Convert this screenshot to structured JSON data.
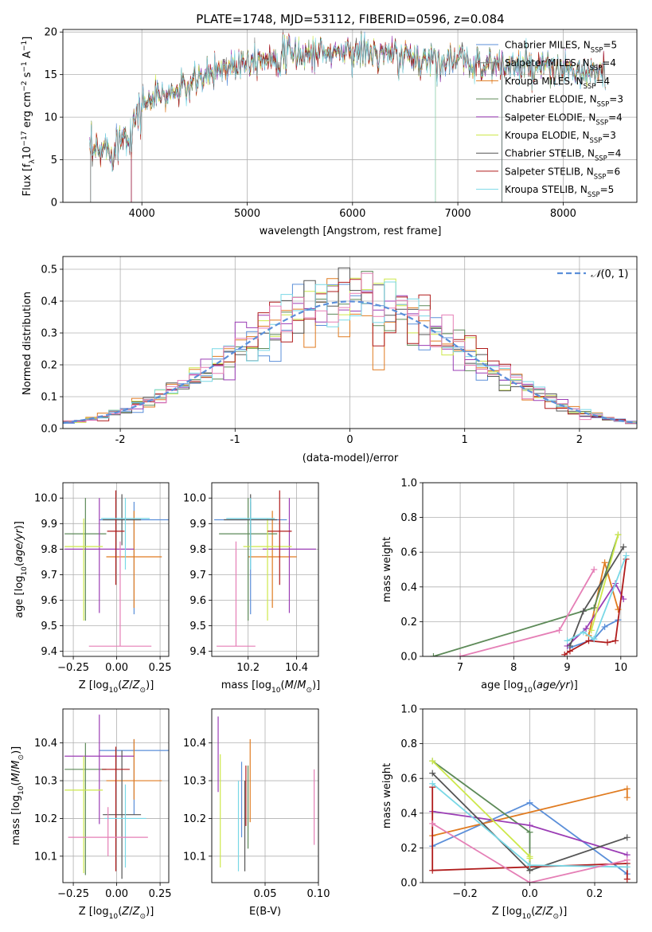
{
  "chart_data": [
    {
      "type": "line",
      "title": "PLATE=1748, MJD=53112, FIBERID=0596, z=0.084",
      "xlabel": "wavelength [Angstrom, rest frame]",
      "ylabel": "Flux [f_λ10^-17 erg cm^-2 s^-1 A^-1]",
      "xlim": [
        3250,
        8700
      ],
      "ylim": [
        0,
        20.3
      ],
      "xticks": [
        4000,
        5000,
        6000,
        7000,
        8000
      ],
      "yticks": [
        0,
        5,
        10,
        15,
        20
      ],
      "legend": "top-right",
      "series": [
        {
          "name": "Chabrier MILES, N_SSP=5",
          "color": "#5b8fd9"
        },
        {
          "name": "Salpeter MILES, N_SSP=4",
          "color": "#7f7f7f"
        },
        {
          "name": "Kroupa MILES, N_SSP=4",
          "color": "#e07b20"
        },
        {
          "name": "Chabrier ELODIE, N_SSP=3",
          "color": "#5d8a58"
        },
        {
          "name": "Salpeter ELODIE, N_SSP=4",
          "color": "#9b3db5"
        },
        {
          "name": "Kroupa ELODIE, N_SSP=3",
          "color": "#cde84b"
        },
        {
          "name": "Chabrier STELIB, N_SSP=4",
          "color": "#555555"
        },
        {
          "name": "Salpeter STELIB, N_SSP=6",
          "color": "#b01c1c"
        },
        {
          "name": "Kroupa STELIB, N_SSP=5",
          "color": "#79d8e6"
        }
      ],
      "spectrum_knots": {
        "x": [
          3500,
          3700,
          3900,
          4000,
          4100,
          4300,
          4500,
          4700,
          5000,
          5200,
          5500,
          6000,
          6500,
          7000,
          7500,
          8000,
          8500
        ],
        "y": [
          5.5,
          6.5,
          8.5,
          11.5,
          12.2,
          12.8,
          14.0,
          15.5,
          16.8,
          17.1,
          17.4,
          17.8,
          17.0,
          16.6,
          16.0,
          15.4,
          14.8
        ]
      },
      "dropouts_x": [
        3510,
        3900,
        6790,
        7420
      ]
    },
    {
      "type": "bar",
      "xlabel": "(data-model)/error",
      "ylabel": "Normed distribution",
      "xlim": [
        -2.5,
        2.5
      ],
      "ylim": [
        0,
        0.54
      ],
      "xticks": [
        -2,
        -1,
        0,
        1,
        2
      ],
      "yticks": [
        0.0,
        0.1,
        0.2,
        0.3,
        0.4,
        0.5
      ],
      "legend": "top-right",
      "gaussian_label": "N(0,1)",
      "bin_width": 0.1,
      "bin_start": -2.5,
      "series_colors": [
        "#5b8fd9",
        "#e07b20",
        "#5d8a58",
        "#9b3db5",
        "#cde84b",
        "#555555",
        "#b01c1c",
        "#79d8e6",
        "#e57fb6"
      ]
    },
    {
      "type": "scatter",
      "xlabel": "Z [log10(Z/Z⊙)]",
      "ylabel": "age [log10(age/yr)]",
      "xlim": [
        -0.31,
        0.3
      ],
      "ylim": [
        9.38,
        10.06
      ],
      "xticks": [
        -0.25,
        0.0,
        0.25
      ],
      "xticklabels": [
        "−0.25",
        "0.00",
        "0.25"
      ],
      "yticks": [
        9.4,
        9.5,
        9.6,
        9.7,
        9.8,
        9.9,
        10.0
      ],
      "points": [
        {
          "color": "#5b8fd9",
          "x": 0.1,
          "xerr": 0.2,
          "y": 9.915,
          "yerr": [
            0.37,
            0.07
          ]
        },
        {
          "color": "#e07b20",
          "x": 0.1,
          "xerr": 0.16,
          "y": 9.77,
          "yerr": [
            0.2,
            0.18
          ]
        },
        {
          "color": "#5d8a58",
          "x": -0.18,
          "xerr": 0.12,
          "y": 9.86,
          "yerr": [
            0.34,
            0.14
          ]
        },
        {
          "color": "#9b3db5",
          "x": -0.1,
          "xerr": 0.2,
          "y": 9.8,
          "yerr": [
            0.25,
            0.2
          ]
        },
        {
          "color": "#cde84b",
          "x": -0.19,
          "xerr": 0.11,
          "y": 9.81,
          "yerr": [
            0.29,
            0.11
          ]
        },
        {
          "color": "#555555",
          "x": 0.03,
          "xerr": 0.11,
          "y": 9.915,
          "yerr": [
            0.1,
            0.1
          ]
        },
        {
          "color": "#b01c1c",
          "x": -0.005,
          "xerr": 0.05,
          "y": 9.87,
          "yerr": [
            0.21,
            0.16
          ]
        },
        {
          "color": "#79d8e6",
          "x": 0.05,
          "xerr": 0.14,
          "y": 9.92,
          "yerr": [
            0.2,
            0.08
          ]
        },
        {
          "color": "#e57fb6",
          "x": 0.02,
          "xerr": 0.18,
          "y": 9.42,
          "yerr": [
            0.0,
            0.41
          ]
        }
      ]
    },
    {
      "type": "scatter",
      "xlabel": "mass [log10(M/M⊙)]",
      "ylabel": "",
      "xlim": [
        10.05,
        10.49
      ],
      "ylim": [
        9.38,
        10.06
      ],
      "xticks": [
        10.2,
        10.4
      ],
      "yticks": [
        9.4,
        9.5,
        9.6,
        9.7,
        9.8,
        9.9,
        10.0
      ],
      "points": [
        {
          "color": "#5b8fd9",
          "x": 10.21,
          "xerr": 0.15,
          "y": 9.915,
          "yerr": [
            0.37,
            0.07
          ]
        },
        {
          "color": "#e07b20",
          "x": 10.3,
          "xerr": 0.1,
          "y": 9.77,
          "yerr": [
            0.2,
            0.18
          ]
        },
        {
          "color": "#5d8a58",
          "x": 10.2,
          "xerr": 0.12,
          "y": 9.86,
          "yerr": [
            0.34,
            0.14
          ]
        },
        {
          "color": "#9b3db5",
          "x": 10.37,
          "xerr": 0.11,
          "y": 9.8,
          "yerr": [
            0.25,
            0.2
          ]
        },
        {
          "color": "#cde84b",
          "x": 10.28,
          "xerr": 0.1,
          "y": 9.81,
          "yerr": [
            0.29,
            0.11
          ]
        },
        {
          "color": "#555555",
          "x": 10.21,
          "xerr": 0.11,
          "y": 9.915,
          "yerr": [
            0.1,
            0.1
          ]
        },
        {
          "color": "#b01c1c",
          "x": 10.33,
          "xerr": 0.05,
          "y": 9.87,
          "yerr": [
            0.21,
            0.16
          ]
        },
        {
          "color": "#79d8e6",
          "x": 10.21,
          "xerr": 0.1,
          "y": 9.92,
          "yerr": [
            0.2,
            0.08
          ]
        },
        {
          "color": "#e57fb6",
          "x": 10.15,
          "xerr": 0.08,
          "y": 9.42,
          "yerr": [
            0.0,
            0.41
          ]
        }
      ]
    },
    {
      "type": "line",
      "xlabel": "age [log10(age/yr)]",
      "ylabel": "mass weight",
      "xlim": [
        6.3,
        10.3
      ],
      "ylim": [
        0,
        1
      ],
      "xticks": [
        7,
        8,
        9,
        10
      ],
      "yticks": [
        0.0,
        0.2,
        0.4,
        0.6,
        0.8,
        1.0
      ],
      "series": [
        {
          "color": "#5b8fd9",
          "x": [
            9.05,
            9.5,
            9.7,
            9.95
          ],
          "y": [
            0.05,
            0.1,
            0.17,
            0.21
          ]
        },
        {
          "color": "#e07b20",
          "x": [
            9.4,
            9.7,
            9.95
          ],
          "y": [
            0.12,
            0.54,
            0.27
          ]
        },
        {
          "color": "#5d8a58",
          "x": [
            6.5,
            9.5,
            9.95
          ],
          "y": [
            0.0,
            0.28,
            0.7
          ]
        },
        {
          "color": "#9b3db5",
          "x": [
            9.0,
            9.35,
            9.9,
            10.05
          ],
          "y": [
            0.06,
            0.16,
            0.42,
            0.33
          ]
        },
        {
          "color": "#cde84b",
          "x": [
            9.45,
            9.95
          ],
          "y": [
            0.15,
            0.7
          ]
        },
        {
          "color": "#555555",
          "x": [
            9.05,
            9.3,
            10.05
          ],
          "y": [
            0.06,
            0.26,
            0.63
          ]
        },
        {
          "color": "#b01c1c",
          "x": [
            8.95,
            9.05,
            9.4,
            9.75,
            9.9,
            10.1
          ],
          "y": [
            0.01,
            0.03,
            0.09,
            0.08,
            0.09,
            0.56
          ]
        },
        {
          "color": "#79d8e6",
          "x": [
            9.0,
            9.3,
            9.5,
            10.1
          ],
          "y": [
            0.09,
            0.14,
            0.1,
            0.58
          ]
        },
        {
          "color": "#e57fb6",
          "x": [
            7.0,
            8.85,
            9.5
          ],
          "y": [
            0.0,
            0.15,
            0.5
          ]
        }
      ]
    },
    {
      "type": "scatter",
      "xlabel": "Z [log10(Z/Z⊙)]",
      "ylabel": "mass [log10(M/M⊙)]",
      "xlim": [
        -0.31,
        0.3
      ],
      "ylim": [
        10.03,
        10.49
      ],
      "xticks": [
        -0.25,
        0.0,
        0.25
      ],
      "xticklabels": [
        "−0.25",
        "0.00",
        "0.25"
      ],
      "yticks": [
        10.1,
        10.2,
        10.3,
        10.4
      ],
      "points": [
        {
          "color": "#5b8fd9",
          "x": 0.1,
          "xerr": 0.2,
          "y": 10.38,
          "yerr": [
            0.17,
            0.03
          ]
        },
        {
          "color": "#e07b20",
          "x": 0.1,
          "xerr": 0.16,
          "y": 10.3,
          "yerr": [
            0.05,
            0.11
          ]
        },
        {
          "color": "#5d8a58",
          "x": -0.18,
          "xerr": 0.12,
          "y": 10.33,
          "yerr": [
            0.28,
            0.07
          ]
        },
        {
          "color": "#9b3db5",
          "x": -0.1,
          "xerr": 0.2,
          "y": 10.365,
          "yerr": [
            0.18,
            0.11
          ]
        },
        {
          "color": "#cde84b",
          "x": -0.19,
          "xerr": 0.11,
          "y": 10.275,
          "yerr": [
            0.22,
            0.09
          ]
        },
        {
          "color": "#555555",
          "x": 0.03,
          "xerr": 0.11,
          "y": 10.21,
          "yerr": [
            0.17,
            0.17
          ]
        },
        {
          "color": "#b01c1c",
          "x": -0.005,
          "xerr": 0.08,
          "y": 10.33,
          "yerr": [
            0.27,
            0.06
          ]
        },
        {
          "color": "#79d8e6",
          "x": 0.05,
          "xerr": 0.12,
          "y": 10.2,
          "yerr": [
            0.13,
            0.09
          ]
        },
        {
          "color": "#e57fb6",
          "x": -0.05,
          "xerr": 0.23,
          "y": 10.15,
          "yerr": [
            0.05,
            0.08
          ]
        }
      ]
    },
    {
      "type": "scatter",
      "xlabel": "E(B-V)",
      "ylabel": "",
      "xlim": [
        0.0,
        0.1
      ],
      "ylim": [
        10.03,
        10.49
      ],
      "xticks": [
        0.05,
        0.1
      ],
      "xticklabels": [
        "0.05",
        "0.10"
      ],
      "yticks": [
        10.1,
        10.2,
        10.3,
        10.4
      ],
      "points": [
        {
          "color": "#5b8fd9",
          "x": 0.028,
          "y": 10.3,
          "yerr": [
            0.15,
            0.05
          ]
        },
        {
          "color": "#e07b20",
          "x": 0.036,
          "y": 10.3,
          "yerr": [
            0.11,
            0.11
          ]
        },
        {
          "color": "#5d8a58",
          "x": 0.034,
          "y": 10.22,
          "yerr": [
            0.1,
            0.12
          ]
        },
        {
          "color": "#9b3db5",
          "x": 0.006,
          "y": 10.37,
          "yerr": [
            0.1,
            0.1
          ]
        },
        {
          "color": "#cde84b",
          "x": 0.008,
          "y": 10.22,
          "yerr": [
            0.15,
            0.15
          ]
        },
        {
          "color": "#555555",
          "x": 0.031,
          "y": 10.18,
          "yerr": [
            0.12,
            0.12
          ]
        },
        {
          "color": "#b01c1c",
          "x": 0.032,
          "y": 10.26,
          "yerr": [
            0.08,
            0.08
          ]
        },
        {
          "color": "#79d8e6",
          "x": 0.025,
          "y": 10.18,
          "yerr": [
            0.12,
            0.12
          ]
        },
        {
          "color": "#e57fb6",
          "x": 0.096,
          "y": 10.23,
          "yerr": [
            0.1,
            0.1
          ]
        }
      ]
    },
    {
      "type": "line",
      "xlabel": "Z [log10(Z/Z⊙)]",
      "ylabel": "mass weight",
      "xlim": [
        -0.33,
        0.33
      ],
      "ylim": [
        0,
        1
      ],
      "xticks": [
        -0.2,
        0.0,
        0.2
      ],
      "xticklabels": [
        "−0.2",
        "0.0",
        "0.2"
      ],
      "yticks": [
        0.0,
        0.2,
        0.4,
        0.6,
        0.8,
        1.0
      ],
      "series": [
        {
          "color": "#5b8fd9",
          "x": [
            -0.3,
            0.0,
            0.3
          ],
          "y": [
            0.21,
            0.46,
            0.05
          ]
        },
        {
          "color": "#e07b20",
          "x": [
            -0.3,
            0.3,
            0.3
          ],
          "y": [
            0.27,
            0.54,
            0.49
          ]
        },
        {
          "color": "#5d8a58",
          "x": [
            -0.3,
            0.0,
            0.0
          ],
          "y": [
            0.7,
            0.29,
            0.07
          ]
        },
        {
          "color": "#9b3db5",
          "x": [
            -0.3,
            0.0,
            0.3
          ],
          "y": [
            0.41,
            0.33,
            0.16
          ]
        },
        {
          "color": "#cde84b",
          "x": [
            -0.3,
            0.0,
            0.0
          ],
          "y": [
            0.7,
            0.15,
            0.14
          ]
        },
        {
          "color": "#555555",
          "x": [
            -0.3,
            0.0,
            0.3
          ],
          "y": [
            0.63,
            0.07,
            0.26
          ]
        },
        {
          "color": "#b01c1c",
          "x": [
            -0.3,
            -0.3,
            0.3,
            0.3
          ],
          "y": [
            0.55,
            0.07,
            0.11,
            0.02
          ]
        },
        {
          "color": "#79d8e6",
          "x": [
            -0.3,
            0.0,
            0.3
          ],
          "y": [
            0.57,
            0.1,
            0.09
          ]
        },
        {
          "color": "#e57fb6",
          "x": [
            -0.3,
            0.0,
            0.3
          ],
          "y": [
            0.34,
            0.0,
            0.13
          ]
        }
      ]
    }
  ]
}
